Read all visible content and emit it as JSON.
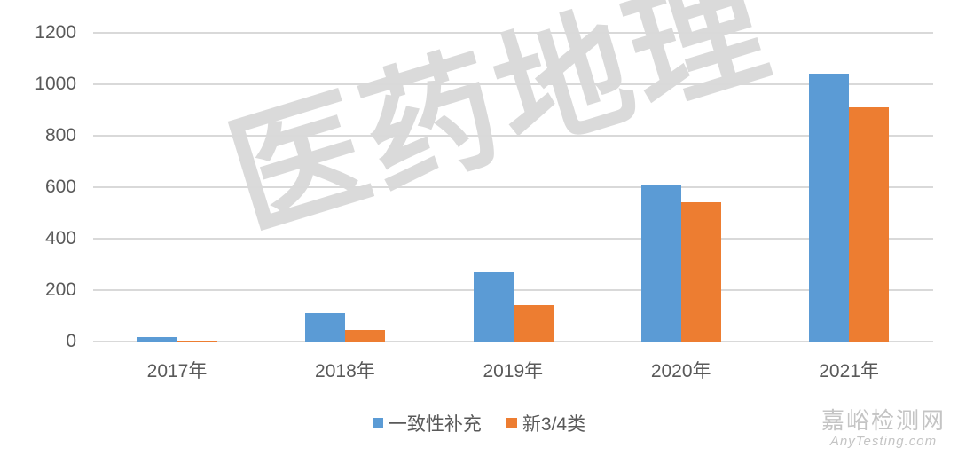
{
  "chart_data": {
    "type": "bar",
    "title": "",
    "xlabel": "",
    "ylabel": "",
    "categories": [
      "2017年",
      "2018年",
      "2019年",
      "2020年",
      "2021年"
    ],
    "series": [
      {
        "name": "一致性补充",
        "color": "#5B9BD5",
        "values": [
          18,
          110,
          269,
          611,
          1043
        ]
      },
      {
        "name": "新3/4类",
        "color": "#ED7D31",
        "values": [
          3,
          45,
          143,
          540,
          911
        ]
      }
    ],
    "yticks": [
      "0",
      "200",
      "400",
      "600",
      "800",
      "1000",
      "1200"
    ],
    "ylim": [
      0,
      1200
    ],
    "grid": true,
    "legend_position": "bottom"
  },
  "watermark": {
    "text": "医药地理"
  },
  "site_mark": {
    "cn": "嘉峪检测网",
    "en": "AnyTesting.com"
  }
}
